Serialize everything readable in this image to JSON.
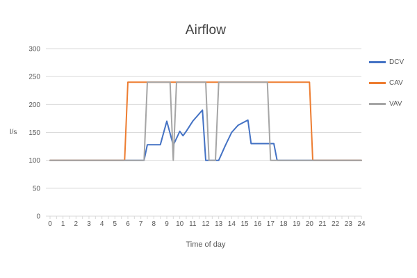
{
  "colors": {
    "background": "#ffffff",
    "grid": "#D9D9D9",
    "axis_text": "#595959",
    "title_text": "#404040"
  },
  "chart_data": {
    "type": "line",
    "title": "Airflow",
    "xlabel": "Time of day",
    "ylabel": "l/s",
    "xlim": [
      0,
      24
    ],
    "ylim": [
      0,
      300
    ],
    "x_ticks": [
      0,
      1,
      2,
      3,
      4,
      5,
      6,
      7,
      8,
      9,
      10,
      11,
      12,
      13,
      14,
      15,
      16,
      17,
      18,
      19,
      20,
      21,
      22,
      23,
      24
    ],
    "minor_x_tick_step": 0.5,
    "y_ticks": [
      0,
      50,
      100,
      150,
      200,
      250,
      300
    ],
    "grid": "horizontal",
    "legend_position": "right",
    "series": [
      {
        "name": "DCV",
        "color": "#4472C4",
        "points": [
          [
            0,
            100
          ],
          [
            7.25,
            100
          ],
          [
            7.5,
            128
          ],
          [
            8.5,
            128
          ],
          [
            9,
            170
          ],
          [
            9.5,
            127
          ],
          [
            10,
            152
          ],
          [
            10.25,
            144
          ],
          [
            10.5,
            152
          ],
          [
            11,
            170
          ],
          [
            11.75,
            190
          ],
          [
            12,
            100
          ],
          [
            13,
            100
          ],
          [
            13.5,
            126
          ],
          [
            14,
            150
          ],
          [
            14.5,
            163
          ],
          [
            15,
            169
          ],
          [
            15.25,
            172
          ],
          [
            15.5,
            130
          ],
          [
            17.25,
            130
          ],
          [
            17.5,
            100
          ],
          [
            24,
            100
          ]
        ]
      },
      {
        "name": "CAV",
        "color": "#ED7D31",
        "points": [
          [
            0,
            100
          ],
          [
            5.75,
            100
          ],
          [
            6,
            240
          ],
          [
            20,
            240
          ],
          [
            20.25,
            100
          ],
          [
            24,
            100
          ]
        ]
      },
      {
        "name": "VAV",
        "color": "#A5A5A5",
        "points": [
          [
            0,
            100
          ],
          [
            7.25,
            100
          ],
          [
            7.5,
            240
          ],
          [
            9.25,
            240
          ],
          [
            9.5,
            100
          ],
          [
            9.75,
            240
          ],
          [
            12,
            240
          ],
          [
            12.25,
            100
          ],
          [
            12.75,
            100
          ],
          [
            13,
            240
          ],
          [
            16.75,
            240
          ],
          [
            17,
            100
          ],
          [
            24,
            100
          ]
        ]
      }
    ]
  }
}
